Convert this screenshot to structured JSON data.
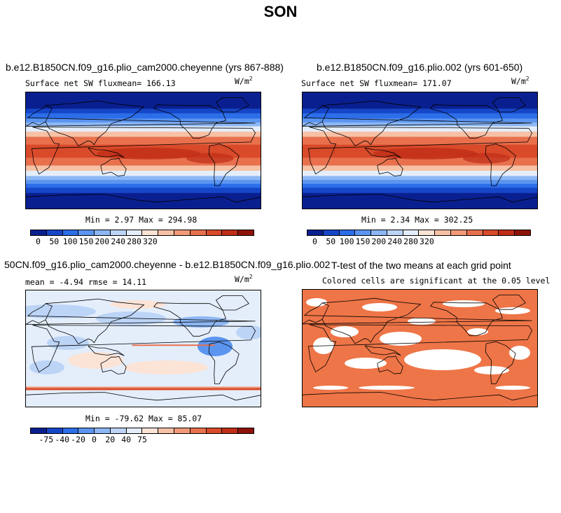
{
  "season_title": "SON",
  "units_base": "W/m",
  "units_exp": "2",
  "panels": {
    "p1": {
      "title": "b.e12.B1850CN.f09_g16.plio_cam2000.cheyenne (yrs 867-888)",
      "subtitle": "Surface net SW fluxmean= 166.13",
      "stats": "Min =   2.97 Max = 294.98"
    },
    "p2": {
      "title": "b.e12.B1850CN.f09_g16.plio.002 (yrs 601-650)",
      "subtitle": "Surface net SW fluxmean= 171.07",
      "stats": "Min =   2.34 Max = 302.25"
    },
    "p3": {
      "title": "50CN.f09_g16.plio_cam2000.cheyenne - b.e12.B1850CN.f09_g16.plio.002",
      "subtitle": "mean =  -4.94     rmse =  14.11",
      "stats": "Min = -79.62 Max =  85.07"
    },
    "p4": {
      "title": "T-test of the two means at each grid point",
      "subtitle": "Colored cells are significant at the 0.05 level"
    }
  },
  "colorbar_abs": {
    "colors": [
      "#0a1f8f",
      "#1646c8",
      "#2c6de8",
      "#5b95f0",
      "#8db7f4",
      "#bcd4f6",
      "#e4eefb",
      "#fbe3d6",
      "#f7c1a6",
      "#f19a78",
      "#e8704d",
      "#d94a2a",
      "#bf2d17",
      "#8e1208"
    ],
    "ticks": [
      "0",
      "50",
      "100",
      "150",
      "200",
      "240",
      "280",
      "320"
    ]
  },
  "colorbar_diff": {
    "colors": [
      "#0a1f8f",
      "#1646c8",
      "#2c6de8",
      "#5b95f0",
      "#8db7f4",
      "#bcd4f6",
      "#e4eefb",
      "#fbe3d6",
      "#f7c1a6",
      "#f19a78",
      "#e8704d",
      "#d94a2a",
      "#bf2d17",
      "#8e1208"
    ],
    "ticks": [
      "-75",
      "-40",
      "-20",
      "0",
      "20",
      "40",
      "75"
    ]
  },
  "colors": {
    "significant": "#ee7547",
    "not_significant": "#ffffff",
    "coast": "#000000"
  }
}
